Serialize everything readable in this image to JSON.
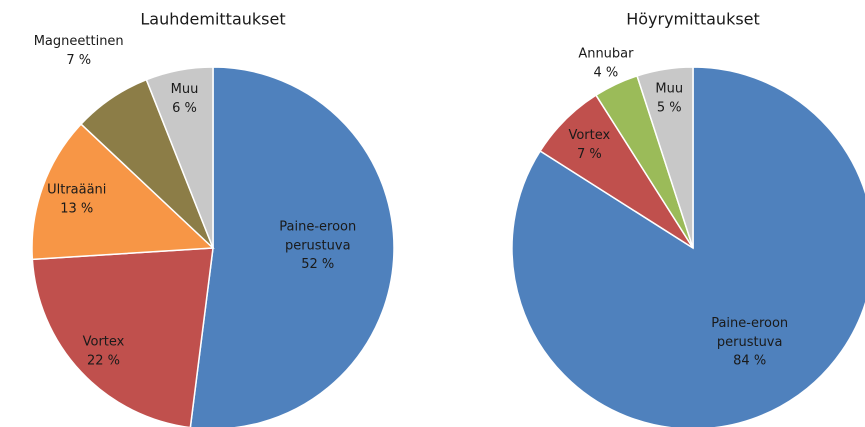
{
  "chart_data": [
    {
      "type": "pie",
      "title": "Lauhdemittaukset",
      "categories": [
        "Paine-eroon perustuva",
        "Vortex",
        "Ultraääni",
        "Magneettinen",
        "Muu"
      ],
      "values": [
        52,
        22,
        13,
        7,
        6
      ],
      "value_labels": [
        "52 %",
        "22 %",
        "13 %",
        "7 %",
        "6 %"
      ],
      "colors": [
        "#4f81bd",
        "#c0504d",
        "#f79646",
        "#8c7d47",
        "#c8c8c8"
      ]
    },
    {
      "type": "pie",
      "title": "Höyrymittaukset",
      "categories": [
        "Paine-eroon perustuva",
        "Vortex",
        "Annubar",
        "Muu"
      ],
      "values": [
        84,
        7,
        4,
        5
      ],
      "value_labels": [
        "84 %",
        "7 %",
        "4 %",
        "5 %"
      ],
      "colors": [
        "#4f81bd",
        "#c0504d",
        "#9bbb59",
        "#c8c8c8"
      ]
    }
  ]
}
